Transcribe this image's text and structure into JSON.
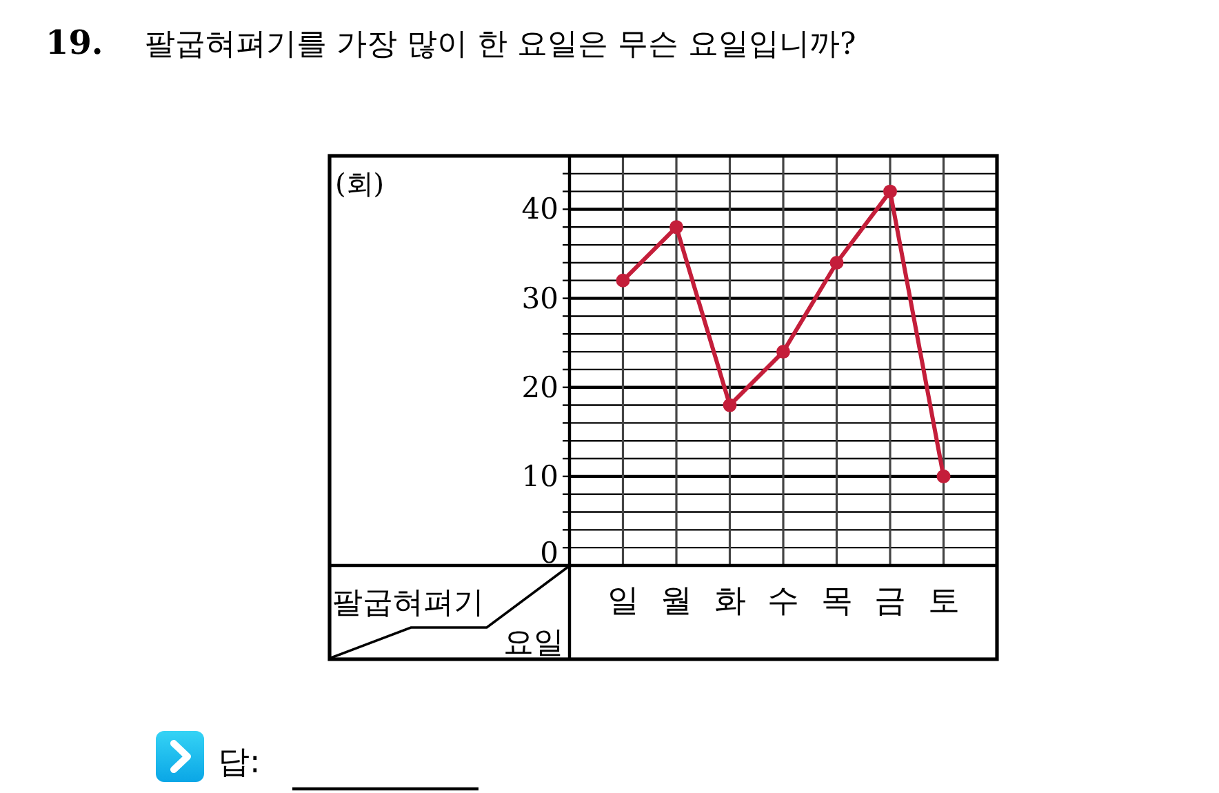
{
  "chart_data": {
    "type": "line",
    "title": "19. 팔굽혀펴기를 가장 많이 한 요일은 무슨 요일입니까?",
    "xlabel": "요일",
    "ylabel": "(회)",
    "categories": [
      "일",
      "월",
      "화",
      "수",
      "목",
      "금",
      "토"
    ],
    "series": [
      {
        "color": "#c41e3a",
        "values": [
          32,
          38,
          18,
          24,
          34,
          42,
          10
        ]
      }
    ],
    "ylim": [
      0,
      46
    ],
    "yticks": [
      0,
      {
        "value": 2,
        "label": null
      },
      {
        "value": 4,
        "label": null
      },
      {
        "value": 6,
        "label": null
      },
      {
        "value": 8,
        "label": null
      },
      10,
      {
        "value": 12,
        "label": null
      },
      {
        "value": 14,
        "label": null
      },
      {
        "value": 16,
        "label": null
      },
      {
        "value": 18,
        "label": null
      },
      20,
      {
        "value": 22,
        "label": null
      },
      {
        "value": 24,
        "label": null
      },
      {
        "value": 26,
        "label": null
      },
      {
        "value": 28,
        "label": null
      },
      30,
      {
        "value": 32,
        "label": null
      },
      {
        "value": 34,
        "label": null
      },
      {
        "value": 36,
        "label": null
      },
      {
        "value": 38,
        "label": null
      },
      40,
      {
        "value": 42,
        "label": null
      },
      {
        "value": 44,
        "label": null
      }
    ],
    "grid": true,
    "marker": "circle",
    "line_style": "solid",
    "annotations": [
      "팔굽혀펴기",
      "답:"
    ]
  }
}
